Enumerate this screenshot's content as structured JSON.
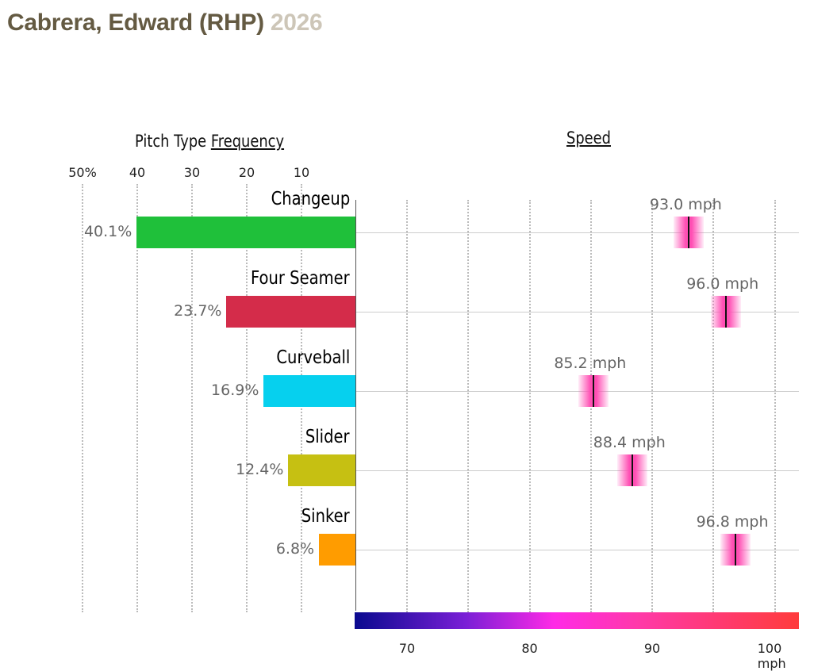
{
  "title": {
    "name": "Cabrera, Edward (RHP)",
    "year": "2026"
  },
  "chart_data": {
    "type": "bar",
    "freq_header": {
      "prefix": "Pitch Type",
      "link": "Frequency"
    },
    "speed_header": "Speed",
    "freq_ticks": [
      "50%",
      "40",
      "30",
      "20",
      "10"
    ],
    "freq_tick_values": [
      50,
      40,
      30,
      20,
      10
    ],
    "speed_ticks": [
      "70",
      "80",
      "90",
      "100 mph"
    ],
    "speed_tick_values": [
      70,
      80,
      90,
      100
    ],
    "speed_range": [
      65.7,
      102
    ],
    "pitches": [
      {
        "name": "Changeup",
        "freq": 40.1,
        "freq_label": "40.1%",
        "speed": 93.0,
        "speed_label": "93.0 mph",
        "color": "#1fc03a"
      },
      {
        "name": "Four Seamer",
        "freq": 23.7,
        "freq_label": "23.7%",
        "speed": 96.0,
        "speed_label": "96.0 mph",
        "color": "#d42c4a"
      },
      {
        "name": "Curveball",
        "freq": 16.9,
        "freq_label": "16.9%",
        "speed": 85.2,
        "speed_label": "85.2 mph",
        "color": "#06d0ee"
      },
      {
        "name": "Slider",
        "freq": 12.4,
        "freq_label": "12.4%",
        "speed": 88.4,
        "speed_label": "88.4 mph",
        "color": "#c6c012"
      },
      {
        "name": "Sinker",
        "freq": 6.8,
        "freq_label": "6.8%",
        "speed": 96.8,
        "speed_label": "96.8 mph",
        "color": "#ff9c00"
      }
    ]
  }
}
